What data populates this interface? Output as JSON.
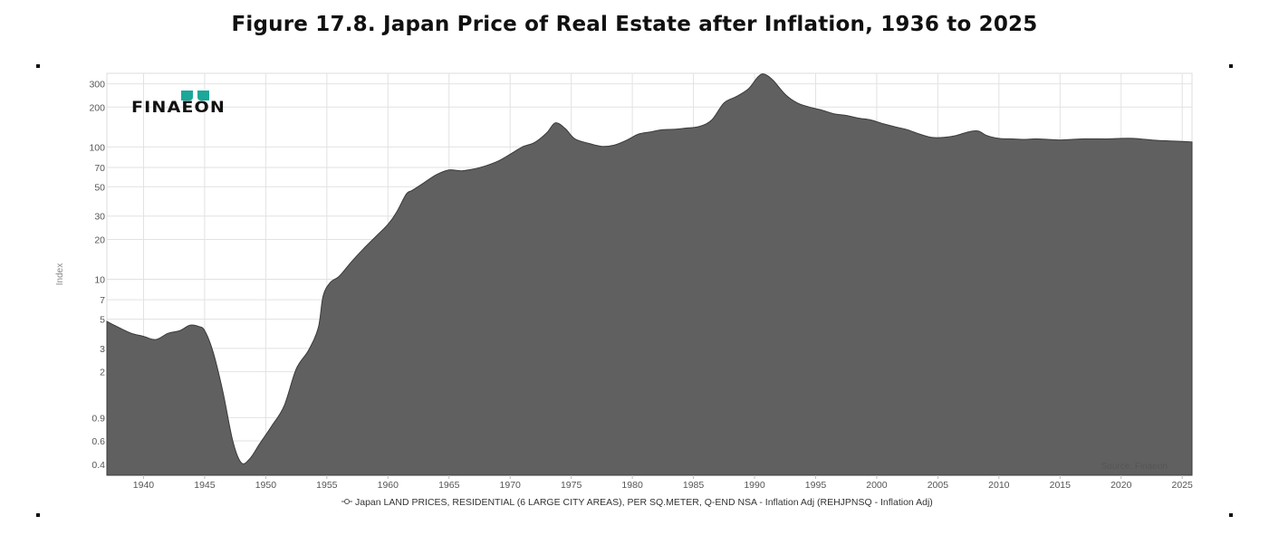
{
  "figure": {
    "title": "Figure 17.8.  Japan Price of Real Estate after Inflation, 1936 to 2025"
  },
  "logo": {
    "text": "FINAEON",
    "colors": {
      "leaf": "#1aa89a",
      "text": "#111111"
    }
  },
  "chart_data": {
    "type": "area",
    "title": "Figure 17.8.  Japan Price of Real Estate after Inflation, 1936 to 2025",
    "xlabel": "",
    "ylabel": "Index",
    "yscale": "log",
    "xlim": [
      1937,
      2025.8
    ],
    "ylim": [
      0.33,
      360
    ],
    "yticks": [
      {
        "value": 0.4,
        "label": "0.4"
      },
      {
        "value": 0.6,
        "label": "0.6"
      },
      {
        "value": 0.9,
        "label": "0.9"
      },
      {
        "value": 2,
        "label": "2"
      },
      {
        "value": 3,
        "label": "3"
      },
      {
        "value": 5,
        "label": "5"
      },
      {
        "value": 7,
        "label": "7"
      },
      {
        "value": 10,
        "label": "10"
      },
      {
        "value": 20,
        "label": "20"
      },
      {
        "value": 30,
        "label": "30"
      },
      {
        "value": 50,
        "label": "50"
      },
      {
        "value": 70,
        "label": "70"
      },
      {
        "value": 100,
        "label": "100"
      },
      {
        "value": 200,
        "label": "200"
      },
      {
        "value": 300,
        "label": "300"
      }
    ],
    "xticks": [
      {
        "value": 1940,
        "label": "1940"
      },
      {
        "value": 1945,
        "label": "1945"
      },
      {
        "value": 1950,
        "label": "1950"
      },
      {
        "value": 1955,
        "label": "1955"
      },
      {
        "value": 1960,
        "label": "1960"
      },
      {
        "value": 1965,
        "label": "1965"
      },
      {
        "value": 1970,
        "label": "1970"
      },
      {
        "value": 1975,
        "label": "1975"
      },
      {
        "value": 1980,
        "label": "1980"
      },
      {
        "value": 1985,
        "label": "1985"
      },
      {
        "value": 1990,
        "label": "1990"
      },
      {
        "value": 1995,
        "label": "1995"
      },
      {
        "value": 2000,
        "label": "2000"
      },
      {
        "value": 2005,
        "label": "2005"
      },
      {
        "value": 2010,
        "label": "2010"
      },
      {
        "value": 2015,
        "label": "2015"
      },
      {
        "value": 2020,
        "label": "2020"
      },
      {
        "value": 2025,
        "label": "2025"
      }
    ],
    "grid": true,
    "legend_position": "bottom-center",
    "source": "Source: Finaeon",
    "series": [
      {
        "name": "Japan LAND PRICES, RESIDENTIAL (6 LARGE CITY AREAS), PER SQ.METER, Q-END NSA - Inflation Adj (REHJPNSQ - Inflation Adj)",
        "color": "#606060",
        "points": [
          [
            1937.0,
            4.8
          ],
          [
            1938.0,
            4.3
          ],
          [
            1939.0,
            3.9
          ],
          [
            1940.0,
            3.7
          ],
          [
            1941.0,
            3.5
          ],
          [
            1942.0,
            3.9
          ],
          [
            1943.0,
            4.1
          ],
          [
            1943.8,
            4.5
          ],
          [
            1944.5,
            4.4
          ],
          [
            1945.0,
            4.1
          ],
          [
            1945.7,
            2.8
          ],
          [
            1946.5,
            1.4
          ],
          [
            1947.3,
            0.6
          ],
          [
            1948.0,
            0.41
          ],
          [
            1948.7,
            0.44
          ],
          [
            1949.5,
            0.57
          ],
          [
            1950.5,
            0.78
          ],
          [
            1951.5,
            1.1
          ],
          [
            1952.5,
            2.1
          ],
          [
            1953.5,
            2.9
          ],
          [
            1954.3,
            4.3
          ],
          [
            1954.7,
            7.5
          ],
          [
            1955.3,
            9.5
          ],
          [
            1956.0,
            10.5
          ],
          [
            1957.0,
            13.5
          ],
          [
            1958.0,
            17.0
          ],
          [
            1959.0,
            21.0
          ],
          [
            1960.0,
            26.0
          ],
          [
            1960.7,
            32.0
          ],
          [
            1961.5,
            44.0
          ],
          [
            1962.0,
            47.0
          ],
          [
            1963.0,
            54.0
          ],
          [
            1964.0,
            62.0
          ],
          [
            1965.0,
            67.0
          ],
          [
            1966.0,
            66.0
          ],
          [
            1967.0,
            68.0
          ],
          [
            1968.0,
            72.0
          ],
          [
            1969.0,
            78.0
          ],
          [
            1970.0,
            88.0
          ],
          [
            1971.0,
            100.0
          ],
          [
            1972.0,
            108.0
          ],
          [
            1973.0,
            128.0
          ],
          [
            1973.7,
            152.0
          ],
          [
            1974.5,
            138.0
          ],
          [
            1975.3,
            115.0
          ],
          [
            1976.5,
            106.0
          ],
          [
            1977.5,
            101.0
          ],
          [
            1978.5,
            103.0
          ],
          [
            1979.5,
            112.0
          ],
          [
            1980.5,
            125.0
          ],
          [
            1981.5,
            130.0
          ],
          [
            1982.5,
            135.0
          ],
          [
            1983.5,
            136.0
          ],
          [
            1984.5,
            139.0
          ],
          [
            1985.5,
            143.0
          ],
          [
            1986.5,
            160.0
          ],
          [
            1987.5,
            215.0
          ],
          [
            1988.5,
            240.0
          ],
          [
            1989.5,
            275.0
          ],
          [
            1990.3,
            340.0
          ],
          [
            1990.8,
            355.0
          ],
          [
            1991.5,
            320.0
          ],
          [
            1992.5,
            250.0
          ],
          [
            1993.5,
            215.0
          ],
          [
            1994.5,
            200.0
          ],
          [
            1995.5,
            190.0
          ],
          [
            1996.5,
            178.0
          ],
          [
            1997.5,
            173.0
          ],
          [
            1998.5,
            165.0
          ],
          [
            1999.5,
            160.0
          ],
          [
            2000.5,
            150.0
          ],
          [
            2001.5,
            142.0
          ],
          [
            2002.5,
            135.0
          ],
          [
            2003.5,
            125.0
          ],
          [
            2004.5,
            118.0
          ],
          [
            2005.5,
            118.0
          ],
          [
            2006.5,
            122.0
          ],
          [
            2007.5,
            130.0
          ],
          [
            2008.3,
            132.0
          ],
          [
            2009.0,
            122.0
          ],
          [
            2010.0,
            116.0
          ],
          [
            2011.0,
            115.0
          ],
          [
            2012.0,
            114.0
          ],
          [
            2013.0,
            115.0
          ],
          [
            2014.0,
            114.0
          ],
          [
            2015.0,
            113.0
          ],
          [
            2016.0,
            114.0
          ],
          [
            2017.0,
            115.0
          ],
          [
            2018.0,
            115.0
          ],
          [
            2019.0,
            115.0
          ],
          [
            2020.0,
            116.0
          ],
          [
            2021.0,
            116.0
          ],
          [
            2022.0,
            114.0
          ],
          [
            2023.0,
            112.0
          ],
          [
            2024.0,
            111.0
          ],
          [
            2025.0,
            110.0
          ],
          [
            2025.8,
            109.0
          ]
        ]
      }
    ]
  }
}
